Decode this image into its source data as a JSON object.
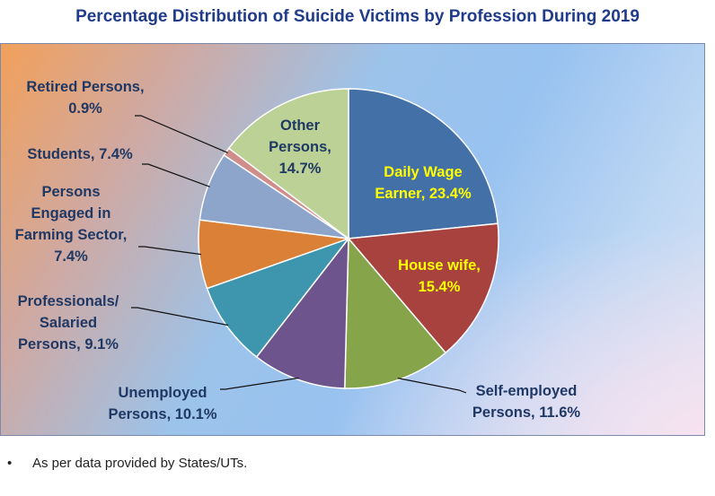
{
  "chart_data": {
    "type": "pie",
    "title": "Percentage Distribution of Suicide Victims by Profession During 2019",
    "unit": "%",
    "slices": [
      {
        "name": "Daily Wage Earner",
        "label": "Daily Wage Earner, 23.4%",
        "value": 23.4,
        "color": "#4470a8"
      },
      {
        "name": "House wife",
        "label": "House wife, 15.4%",
        "value": 15.4,
        "color": "#a8423f"
      },
      {
        "name": "Self-employed Persons",
        "label": "Self-employed Persons, 11.6%",
        "value": 11.6,
        "color": "#86a44a"
      },
      {
        "name": "Unemployed Persons",
        "label": "Unemployed Persons, 10.1%",
        "value": 10.1,
        "color": "#6e548d"
      },
      {
        "name": "Professionals/ Salaried Persons",
        "label": "Professionals/ Salaried Persons, 9.1%",
        "value": 9.1,
        "color": "#3d96ae"
      },
      {
        "name": "Persons Engaged in Farming Sector",
        "label": "Persons Engaged in Farming Sector, 7.4%",
        "value": 7.4,
        "color": "#da8137"
      },
      {
        "name": "Students",
        "label": "Students, 7.4%",
        "value": 7.4,
        "color": "#8ea5cb"
      },
      {
        "name": "Retired Persons",
        "label": "Retired Persons, 0.9%",
        "value": 0.9,
        "color": "#cf8e8c"
      },
      {
        "name": "Other Persons",
        "label": "Other Persons, 14.7%",
        "value": 14.7,
        "color": "#bcd196"
      }
    ],
    "legend": "none"
  },
  "labels": {
    "daily_wage": [
      "Daily Wage",
      "Earner, 23.4%"
    ],
    "house_wife": [
      "House wife,",
      "15.4%"
    ],
    "self_employed": [
      "Self-employed",
      "Persons, 11.6%"
    ],
    "unemployed": [
      "Unemployed",
      "Persons, 10.1%"
    ],
    "professionals": [
      "Professionals/",
      "Salaried",
      "Persons, 9.1%"
    ],
    "farming": [
      "Persons",
      "Engaged in",
      "Farming Sector,",
      "7.4%"
    ],
    "students": [
      "Students, 7.4%"
    ],
    "retired": [
      "Retired Persons,",
      "0.9%"
    ],
    "other": [
      "Other",
      "Persons,",
      "14.7%"
    ]
  },
  "footnote": {
    "bullet": "•",
    "text": "As per data provided by States/UTs."
  }
}
